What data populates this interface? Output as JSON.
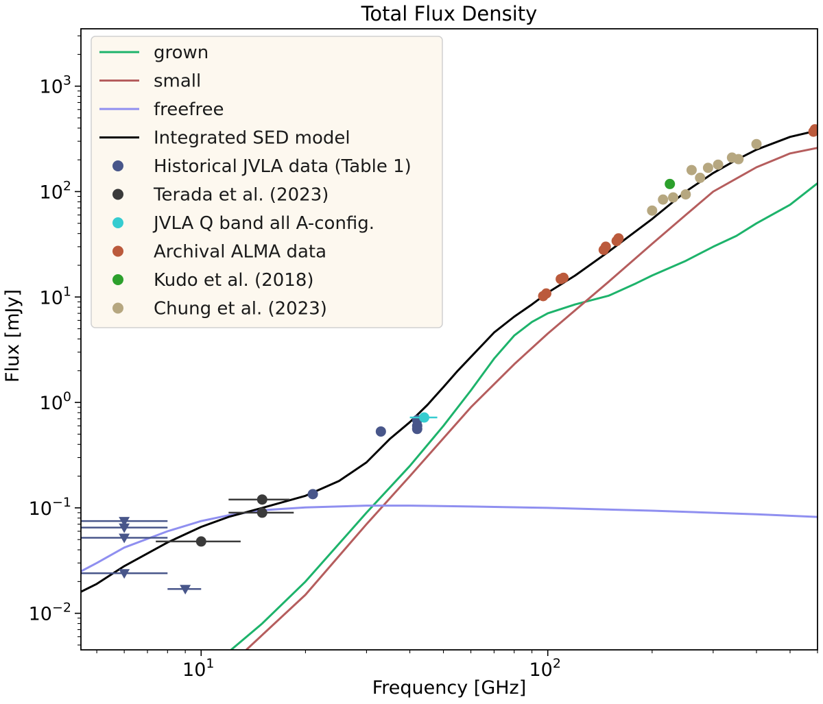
{
  "chart_data": {
    "type": "scatter",
    "title": "Total Flux Density",
    "xlabel": "Frequency [GHz]",
    "ylabel": "Flux [mJy]",
    "xscale": "log",
    "yscale": "log",
    "xlim": [
      4.5,
      600
    ],
    "ylim": [
      0.0045,
      3500
    ],
    "grid": false,
    "legend_position": "top-left",
    "x_tick_labels": [
      {
        "value": 10,
        "base": "10",
        "exp": "1"
      },
      {
        "value": 100,
        "base": "10",
        "exp": "2"
      }
    ],
    "y_tick_labels": [
      {
        "value": 0.01,
        "base": "10",
        "exp": "−2"
      },
      {
        "value": 0.1,
        "base": "10",
        "exp": "−1"
      },
      {
        "value": 1,
        "base": "10",
        "exp": "0"
      },
      {
        "value": 10,
        "base": "10",
        "exp": "1"
      },
      {
        "value": 100,
        "base": "10",
        "exp": "2"
      },
      {
        "value": 1000,
        "base": "10",
        "exp": "3"
      }
    ],
    "lines": [
      {
        "name": "grown",
        "color": "#1db36b",
        "points": [
          [
            12.2,
            0.0045
          ],
          [
            15,
            0.008
          ],
          [
            20,
            0.02
          ],
          [
            30,
            0.09
          ],
          [
            40,
            0.25
          ],
          [
            50,
            0.6
          ],
          [
            60,
            1.3
          ],
          [
            70,
            2.6
          ],
          [
            80,
            4.3
          ],
          [
            90,
            5.8
          ],
          [
            100,
            7.0
          ],
          [
            120,
            8.5
          ],
          [
            150,
            10.3
          ],
          [
            180,
            13.5
          ],
          [
            200,
            16
          ],
          [
            250,
            22
          ],
          [
            300,
            30
          ],
          [
            350,
            38
          ],
          [
            400,
            50
          ],
          [
            500,
            75
          ],
          [
            600,
            120
          ]
        ]
      },
      {
        "name": "small",
        "color": "#b55d5d",
        "points": [
          [
            13.5,
            0.0045
          ],
          [
            20,
            0.015
          ],
          [
            30,
            0.07
          ],
          [
            40,
            0.2
          ],
          [
            60,
            0.9
          ],
          [
            80,
            2.3
          ],
          [
            100,
            4.5
          ],
          [
            150,
            14
          ],
          [
            200,
            32
          ],
          [
            250,
            60
          ],
          [
            300,
            100
          ],
          [
            400,
            170
          ],
          [
            500,
            230
          ],
          [
            600,
            260
          ]
        ]
      },
      {
        "name": "freefree",
        "color": "#8f8ff0",
        "points": [
          [
            4.5,
            0.025
          ],
          [
            5,
            0.03
          ],
          [
            6,
            0.042
          ],
          [
            8,
            0.06
          ],
          [
            10,
            0.075
          ],
          [
            12,
            0.085
          ],
          [
            15,
            0.095
          ],
          [
            20,
            0.101
          ],
          [
            30,
            0.105
          ],
          [
            40,
            0.105
          ],
          [
            60,
            0.103
          ],
          [
            100,
            0.1
          ],
          [
            200,
            0.094
          ],
          [
            400,
            0.087
          ],
          [
            600,
            0.082
          ]
        ]
      },
      {
        "name": "Integrated SED model",
        "color": "#000000",
        "points": [
          [
            4.5,
            0.016
          ],
          [
            5,
            0.019
          ],
          [
            6,
            0.028
          ],
          [
            8,
            0.047
          ],
          [
            10,
            0.066
          ],
          [
            12,
            0.082
          ],
          [
            15,
            0.1
          ],
          [
            20,
            0.13
          ],
          [
            25,
            0.18
          ],
          [
            30,
            0.27
          ],
          [
            35,
            0.45
          ],
          [
            40,
            0.65
          ],
          [
            45,
            0.95
          ],
          [
            50,
            1.4
          ],
          [
            55,
            2.0
          ],
          [
            60,
            2.7
          ],
          [
            70,
            4.6
          ],
          [
            80,
            6.5
          ],
          [
            90,
            8.5
          ],
          [
            100,
            11
          ],
          [
            120,
            16
          ],
          [
            150,
            27
          ],
          [
            200,
            55
          ],
          [
            250,
            100
          ],
          [
            300,
            150
          ],
          [
            350,
            200
          ],
          [
            400,
            250
          ],
          [
            500,
            330
          ],
          [
            600,
            380
          ]
        ]
      }
    ],
    "series": [
      {
        "name": "Historical JVLA data (Table 1)",
        "color": "#48568a",
        "points": [
          [
            21,
            0.135
          ],
          [
            33,
            0.53
          ],
          [
            42,
            0.56
          ],
          [
            42,
            0.6
          ],
          [
            42,
            0.68
          ]
        ]
      },
      {
        "name": "Terada et al. (2023)",
        "color": "#3a3a3a",
        "points": [
          [
            10,
            0.048,
            7.4,
            13
          ],
          [
            15,
            0.12,
            12,
            18
          ],
          [
            15,
            0.09,
            12,
            18.5
          ]
        ]
      },
      {
        "name": "JVLA Q band all A-config.",
        "color": "#35ccd0",
        "points": [
          [
            44,
            0.72,
            40,
            48
          ]
        ]
      },
      {
        "name": "Archival ALMA data",
        "color": "#bb5a3c",
        "points": [
          [
            97,
            10.2
          ],
          [
            99,
            10.8
          ],
          [
            109,
            14.8
          ],
          [
            111,
            15.2
          ],
          [
            145,
            28
          ],
          [
            147,
            30
          ],
          [
            158,
            34
          ],
          [
            160,
            36
          ],
          [
            584,
            370
          ],
          [
            590,
            390
          ]
        ]
      },
      {
        "name": "Kudo et al. (2018)",
        "color": "#2ca02c",
        "points": [
          [
            225,
            118
          ]
        ]
      },
      {
        "name": "Chung et al. (2023)",
        "color": "#b6a780",
        "points": [
          [
            200,
            66
          ],
          [
            215,
            84
          ],
          [
            230,
            88
          ],
          [
            250,
            94
          ],
          [
            260,
            160
          ],
          [
            275,
            135
          ],
          [
            290,
            168
          ],
          [
            310,
            180
          ],
          [
            340,
            210
          ],
          [
            355,
            203
          ],
          [
            400,
            282
          ]
        ]
      }
    ],
    "upper_limits": {
      "color": "#48568a",
      "points": [
        [
          6,
          0.075,
          4.5,
          8
        ],
        [
          6,
          0.065,
          4.5,
          8
        ],
        [
          6,
          0.052,
          4.5,
          8
        ],
        [
          6,
          0.024,
          4.5,
          8
        ],
        [
          9,
          0.017,
          8,
          10
        ]
      ]
    }
  }
}
